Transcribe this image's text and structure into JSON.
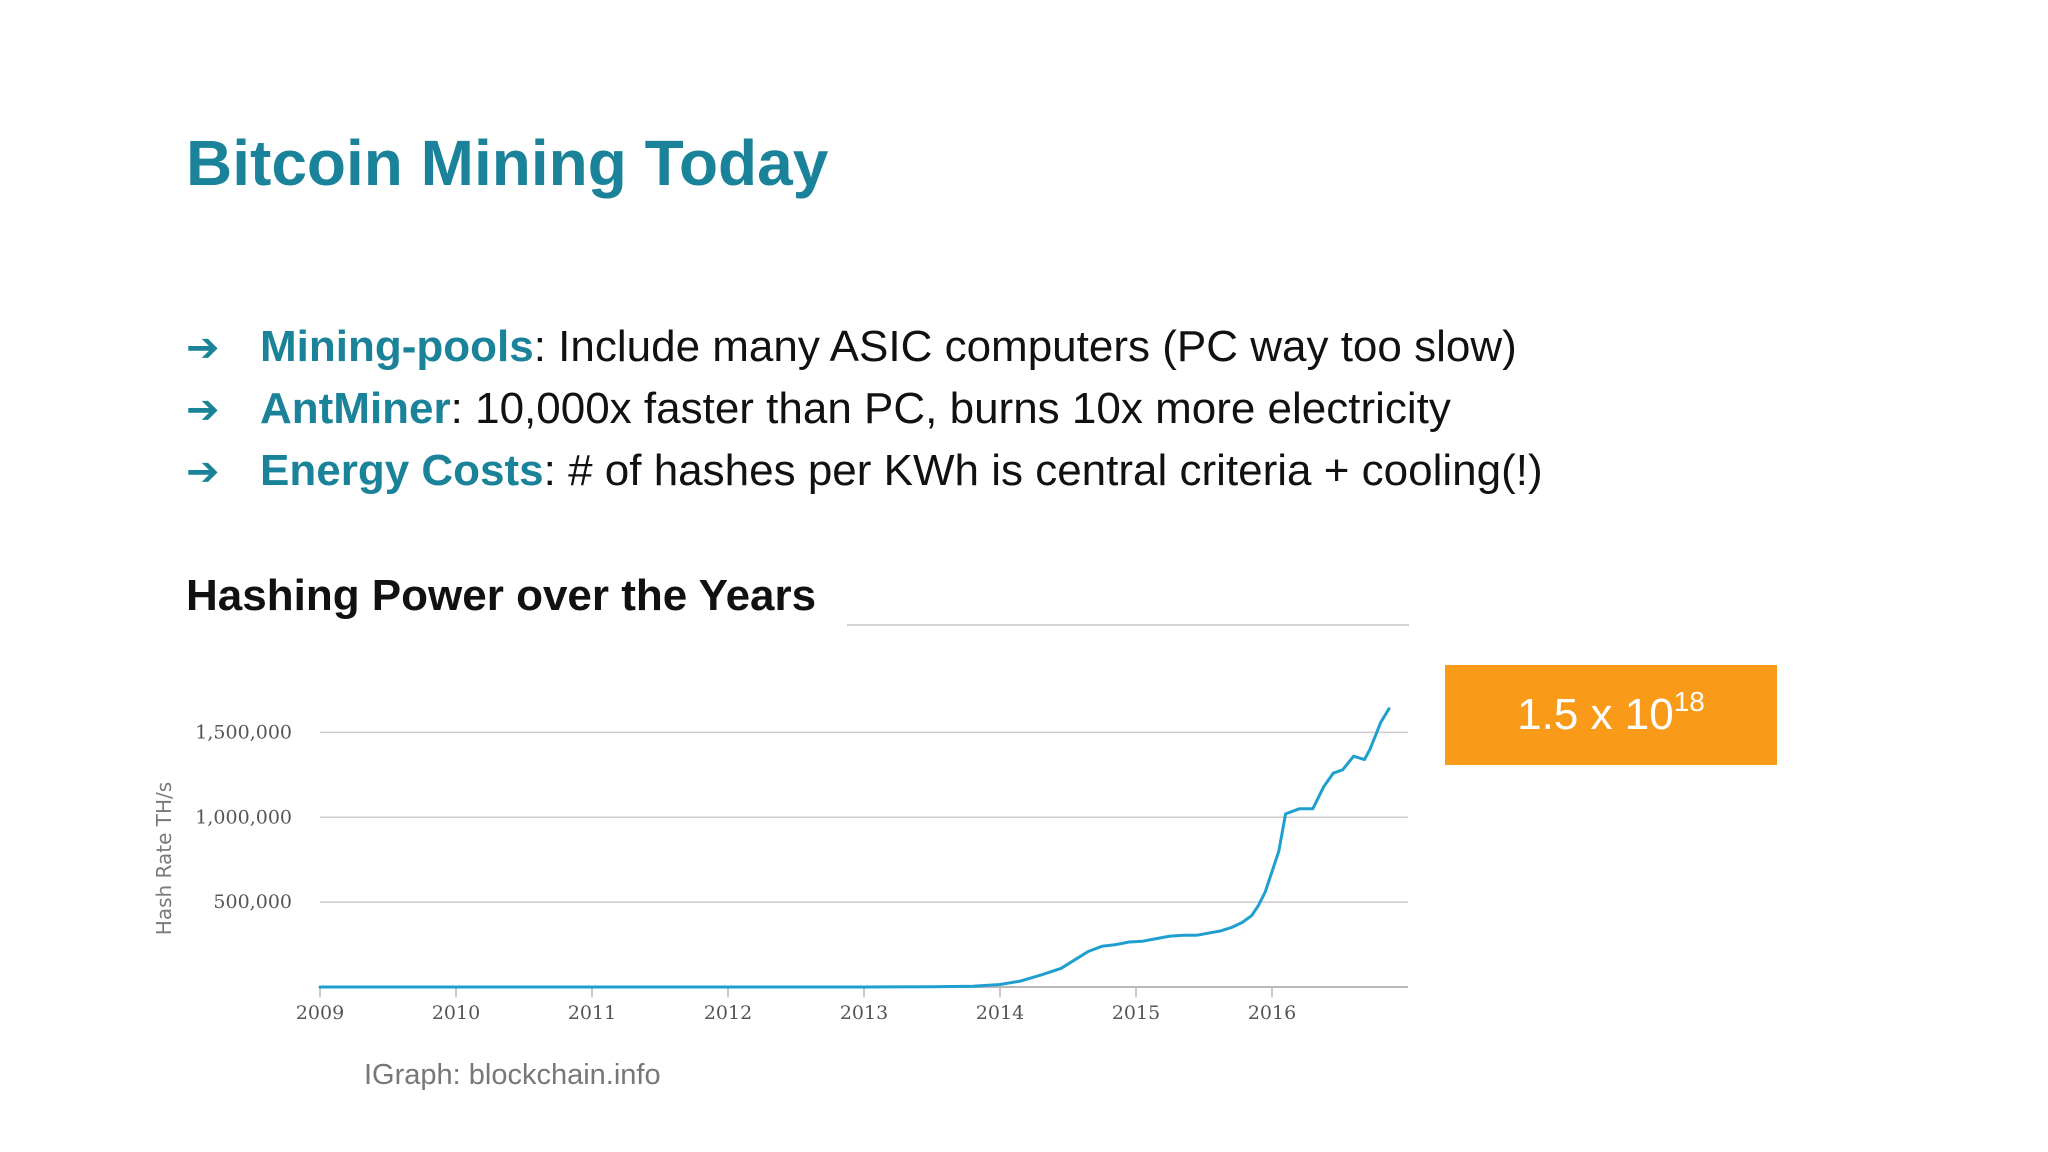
{
  "title": "Bitcoin Mining Today",
  "bullets": [
    {
      "arrow": "➔",
      "term": "Mining-pools",
      "text": ": Include many ASIC computers (PC way too slow)"
    },
    {
      "arrow": "➔",
      "term": "AntMiner",
      "text": ": 10,000x faster than PC, burns 10x more electricity"
    },
    {
      "arrow": "➔",
      "term": "Energy Costs",
      "text": ": # of hashes per KWh is central criteria + cooling(!)"
    }
  ],
  "section_heading": "Hashing Power over the Years",
  "callout": {
    "base": "1.5 x 10",
    "exponent": "18"
  },
  "source": "IGraph: blockchain.info",
  "colors": {
    "title": "#1a8299",
    "accent": "#1a8299",
    "callout_bg": "#fa9a19",
    "series": "#1f9fd0",
    "grid": "#cccccc"
  },
  "chart_data": {
    "type": "line",
    "title": "",
    "xlabel": "",
    "ylabel": "Hash Rate TH/s",
    "xlim": [
      2009,
      2017
    ],
    "ylim": [
      0,
      1750000
    ],
    "x_ticks": [
      2009,
      2010,
      2011,
      2012,
      2013,
      2014,
      2015,
      2016
    ],
    "x_tick_labels": [
      "2009",
      "2010",
      "2011",
      "2012",
      "2013",
      "2014",
      "2015",
      "2016"
    ],
    "y_ticks": [
      500000,
      1000000,
      1500000
    ],
    "y_tick_labels": [
      "500,000",
      "1,000,000",
      "1,500,000"
    ],
    "grid": true,
    "series": [
      {
        "name": "Hash Rate TH/s",
        "x": [
          2009.0,
          2010.0,
          2011.0,
          2012.0,
          2013.0,
          2013.5,
          2013.8,
          2014.0,
          2014.15,
          2014.3,
          2014.45,
          2014.55,
          2014.65,
          2014.75,
          2014.85,
          2014.95,
          2015.05,
          2015.15,
          2015.25,
          2015.35,
          2015.45,
          2015.55,
          2015.62,
          2015.7,
          2015.78,
          2015.85,
          2015.9,
          2015.95,
          2016.0,
          2016.05,
          2016.1,
          2016.2,
          2016.3,
          2016.38,
          2016.45,
          2016.52,
          2016.6,
          2016.68,
          2016.72,
          2016.76,
          2016.8,
          2016.83,
          2016.86
        ],
        "values": [
          0,
          0,
          0,
          0,
          0,
          1000,
          5000,
          15000,
          35000,
          70000,
          110000,
          160000,
          210000,
          240000,
          250000,
          265000,
          270000,
          285000,
          300000,
          305000,
          305000,
          320000,
          330000,
          350000,
          380000,
          420000,
          480000,
          560000,
          680000,
          800000,
          1020000,
          1050000,
          1050000,
          1180000,
          1260000,
          1280000,
          1360000,
          1340000,
          1400000,
          1480000,
          1560000,
          1600000,
          1640000
        ]
      }
    ]
  }
}
